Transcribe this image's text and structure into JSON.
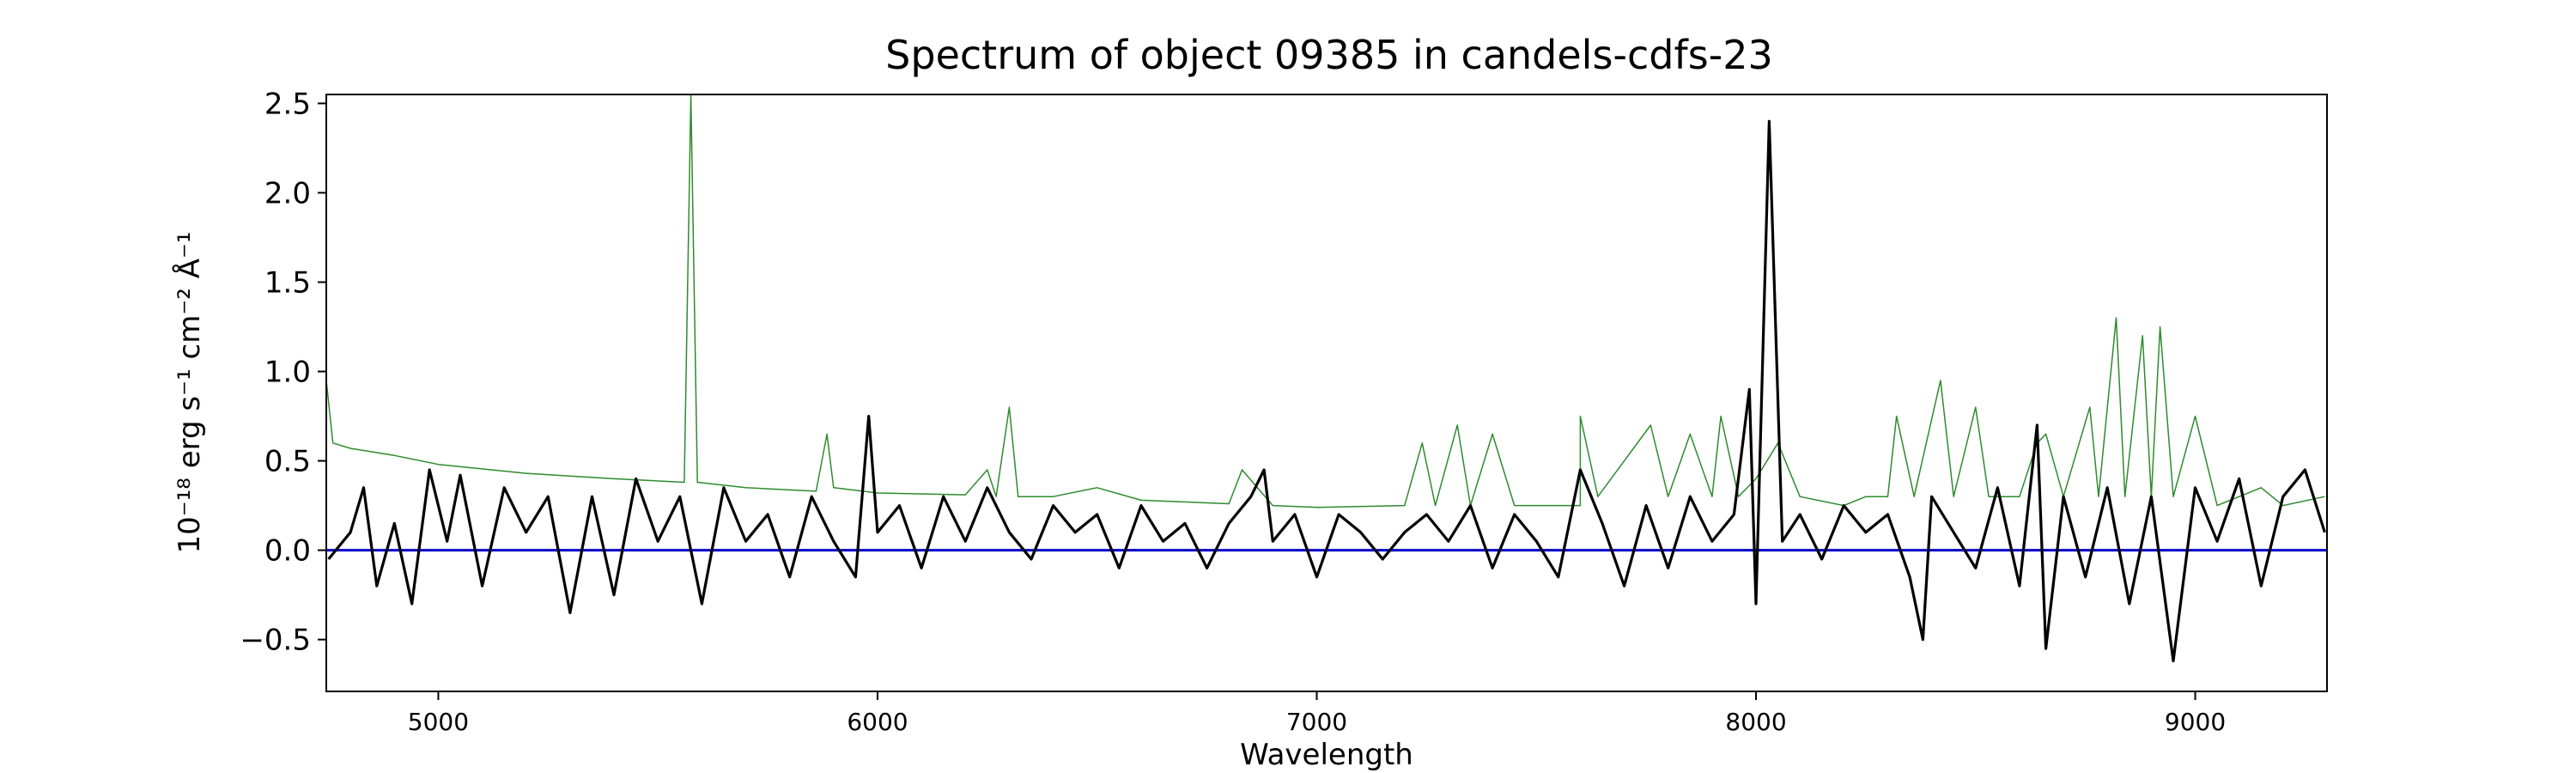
{
  "chart_data": {
    "type": "line",
    "title": "Spectrum of object 09385 in candels-cdfs-23",
    "xlabel": "Wavelength",
    "ylabel": "10⁻¹⁸ erg s⁻¹ cm⁻² Å⁻¹",
    "xlim": [
      4745,
      9300
    ],
    "ylim": [
      -0.79,
      2.55
    ],
    "x_ticks": [
      5000,
      6000,
      7000,
      8000,
      9000
    ],
    "y_ticks": [
      -0.5,
      0.0,
      0.5,
      1.0,
      1.5,
      2.0,
      2.5
    ],
    "x_tick_labels": [
      "5000",
      "6000",
      "7000",
      "8000",
      "9000"
    ],
    "y_tick_labels": [
      "−0.5",
      "0.0",
      "0.5",
      "1.0",
      "1.5",
      "2.0",
      "2.5"
    ],
    "grid": false,
    "legend": "none",
    "series_colors": {
      "flux": "#000000",
      "error": "#2e8b2e",
      "zero": "#0000cc"
    },
    "series": [
      {
        "role": "flux",
        "points": [
          [
            4750,
            -0.05
          ],
          [
            4800,
            0.1
          ],
          [
            4830,
            0.35
          ],
          [
            4860,
            -0.2
          ],
          [
            4900,
            0.15
          ],
          [
            4940,
            -0.3
          ],
          [
            4980,
            0.45
          ],
          [
            5020,
            0.05
          ],
          [
            5050,
            0.42
          ],
          [
            5100,
            -0.2
          ],
          [
            5150,
            0.35
          ],
          [
            5200,
            0.1
          ],
          [
            5250,
            0.3
          ],
          [
            5300,
            -0.35
          ],
          [
            5350,
            0.3
          ],
          [
            5400,
            -0.25
          ],
          [
            5450,
            0.4
          ],
          [
            5500,
            0.05
          ],
          [
            5550,
            0.3
          ],
          [
            5600,
            -0.3
          ],
          [
            5650,
            0.35
          ],
          [
            5700,
            0.05
          ],
          [
            5750,
            0.2
          ],
          [
            5800,
            -0.15
          ],
          [
            5850,
            0.3
          ],
          [
            5900,
            0.05
          ],
          [
            5950,
            -0.15
          ],
          [
            5980,
            0.75
          ],
          [
            6000,
            0.1
          ],
          [
            6050,
            0.25
          ],
          [
            6100,
            -0.1
          ],
          [
            6150,
            0.3
          ],
          [
            6200,
            0.05
          ],
          [
            6250,
            0.35
          ],
          [
            6300,
            0.1
          ],
          [
            6350,
            -0.05
          ],
          [
            6400,
            0.25
          ],
          [
            6450,
            0.1
          ],
          [
            6500,
            0.2
          ],
          [
            6550,
            -0.1
          ],
          [
            6600,
            0.25
          ],
          [
            6650,
            0.05
          ],
          [
            6700,
            0.15
          ],
          [
            6750,
            -0.1
          ],
          [
            6800,
            0.15
          ],
          [
            6850,
            0.3
          ],
          [
            6880,
            0.45
          ],
          [
            6900,
            0.05
          ],
          [
            6950,
            0.2
          ],
          [
            7000,
            -0.15
          ],
          [
            7050,
            0.2
          ],
          [
            7100,
            0.1
          ],
          [
            7150,
            -0.05
          ],
          [
            7200,
            0.1
          ],
          [
            7250,
            0.2
          ],
          [
            7300,
            0.05
          ],
          [
            7350,
            0.25
          ],
          [
            7400,
            -0.1
          ],
          [
            7450,
            0.2
          ],
          [
            7500,
            0.05
          ],
          [
            7550,
            -0.15
          ],
          [
            7600,
            0.45
          ],
          [
            7650,
            0.15
          ],
          [
            7700,
            -0.2
          ],
          [
            7750,
            0.25
          ],
          [
            7800,
            -0.1
          ],
          [
            7850,
            0.3
          ],
          [
            7900,
            0.05
          ],
          [
            7950,
            0.2
          ],
          [
            7985,
            0.9
          ],
          [
            8000,
            -0.3
          ],
          [
            8030,
            2.4
          ],
          [
            8060,
            0.05
          ],
          [
            8100,
            0.2
          ],
          [
            8150,
            -0.05
          ],
          [
            8200,
            0.25
          ],
          [
            8250,
            0.1
          ],
          [
            8300,
            0.2
          ],
          [
            8350,
            -0.15
          ],
          [
            8380,
            -0.5
          ],
          [
            8400,
            0.3
          ],
          [
            8450,
            0.1
          ],
          [
            8500,
            -0.1
          ],
          [
            8550,
            0.35
          ],
          [
            8600,
            -0.2
          ],
          [
            8640,
            0.7
          ],
          [
            8660,
            -0.55
          ],
          [
            8700,
            0.3
          ],
          [
            8750,
            -0.15
          ],
          [
            8800,
            0.35
          ],
          [
            8850,
            -0.3
          ],
          [
            8900,
            0.3
          ],
          [
            8950,
            -0.62
          ],
          [
            9000,
            0.35
          ],
          [
            9050,
            0.05
          ],
          [
            9100,
            0.4
          ],
          [
            9150,
            -0.2
          ],
          [
            9200,
            0.3
          ],
          [
            9250,
            0.45
          ],
          [
            9295,
            0.1
          ]
        ]
      },
      {
        "role": "error",
        "points": [
          [
            4745,
            0.95
          ],
          [
            4760,
            0.6
          ],
          [
            4800,
            0.57
          ],
          [
            4900,
            0.53
          ],
          [
            5000,
            0.48
          ],
          [
            5200,
            0.43
          ],
          [
            5400,
            0.4
          ],
          [
            5560,
            0.38
          ],
          [
            5575,
            2.55
          ],
          [
            5590,
            0.38
          ],
          [
            5700,
            0.35
          ],
          [
            5860,
            0.33
          ],
          [
            5885,
            0.65
          ],
          [
            5900,
            0.35
          ],
          [
            6000,
            0.32
          ],
          [
            6200,
            0.31
          ],
          [
            6250,
            0.45
          ],
          [
            6270,
            0.3
          ],
          [
            6300,
            0.8
          ],
          [
            6320,
            0.3
          ],
          [
            6400,
            0.3
          ],
          [
            6500,
            0.35
          ],
          [
            6600,
            0.28
          ],
          [
            6800,
            0.26
          ],
          [
            6830,
            0.45
          ],
          [
            6900,
            0.25
          ],
          [
            7000,
            0.24
          ],
          [
            7200,
            0.25
          ],
          [
            7240,
            0.6
          ],
          [
            7270,
            0.25
          ],
          [
            7320,
            0.7
          ],
          [
            7350,
            0.25
          ],
          [
            7400,
            0.65
          ],
          [
            7450,
            0.25
          ],
          [
            7600,
            0.25
          ],
          [
            7600,
            0.75
          ],
          [
            7640,
            0.3
          ],
          [
            7700,
            0.5
          ],
          [
            7760,
            0.7
          ],
          [
            7800,
            0.3
          ],
          [
            7850,
            0.65
          ],
          [
            7900,
            0.3
          ],
          [
            7920,
            0.75
          ],
          [
            7960,
            0.3
          ],
          [
            8000,
            0.4
          ],
          [
            8050,
            0.6
          ],
          [
            8100,
            0.3
          ],
          [
            8200,
            0.25
          ],
          [
            8250,
            0.3
          ],
          [
            8300,
            0.3
          ],
          [
            8320,
            0.75
          ],
          [
            8360,
            0.3
          ],
          [
            8420,
            0.95
          ],
          [
            8450,
            0.3
          ],
          [
            8500,
            0.8
          ],
          [
            8530,
            0.3
          ],
          [
            8600,
            0.3
          ],
          [
            8640,
            0.6
          ],
          [
            8660,
            0.65
          ],
          [
            8700,
            0.3
          ],
          [
            8760,
            0.8
          ],
          [
            8780,
            0.3
          ],
          [
            8820,
            1.3
          ],
          [
            8840,
            0.3
          ],
          [
            8880,
            1.2
          ],
          [
            8900,
            0.3
          ],
          [
            8920,
            1.25
          ],
          [
            8950,
            0.3
          ],
          [
            9000,
            0.75
          ],
          [
            9050,
            0.25
          ],
          [
            9150,
            0.35
          ],
          [
            9200,
            0.25
          ],
          [
            9295,
            0.3
          ]
        ]
      },
      {
        "role": "zero",
        "points": [
          [
            4745,
            0.0
          ],
          [
            9300,
            0.0
          ]
        ]
      }
    ]
  }
}
